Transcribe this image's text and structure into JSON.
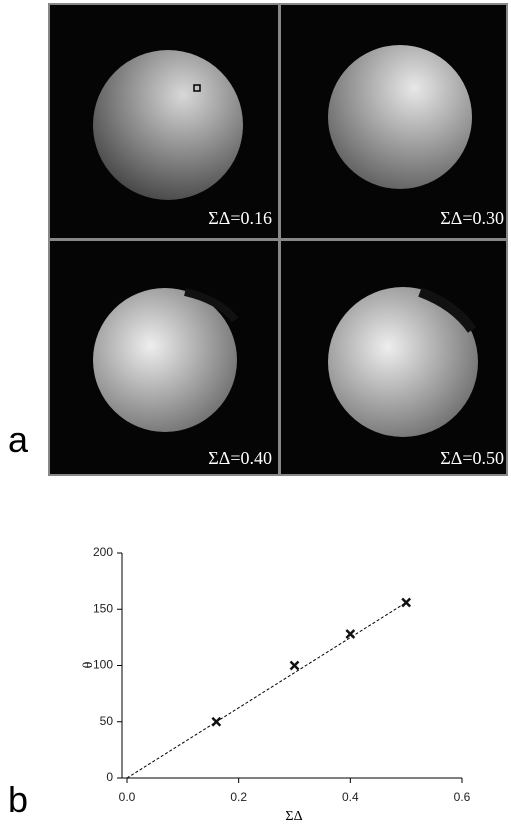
{
  "panel_a": {
    "label": "a",
    "images": [
      {
        "label": "ΣΔ=0.16"
      },
      {
        "label": "ΣΔ=0.30"
      },
      {
        "label": "ΣΔ=0.40"
      },
      {
        "label": "ΣΔ=0.50"
      }
    ]
  },
  "panel_b": {
    "label": "b"
  },
  "chart_data": {
    "type": "scatter",
    "x_label": "ΣΔ",
    "y_label": "θ",
    "x": [
      0.16,
      0.3,
      0.4,
      0.5
    ],
    "values": [
      50,
      100,
      128,
      156
    ],
    "color": "#111",
    "trend_line": {
      "x": [
        0,
        0.5
      ],
      "values": [
        0,
        156
      ],
      "style": "dashed"
    },
    "xlim": [
      0,
      0.6
    ],
    "xticks": [
      {
        "value": 0,
        "label": "0.0"
      },
      0.2,
      0.4,
      0.6
    ],
    "ylim": [
      0,
      200
    ],
    "yticks": [
      0,
      50,
      100,
      150,
      200
    ],
    "grid": false
  }
}
